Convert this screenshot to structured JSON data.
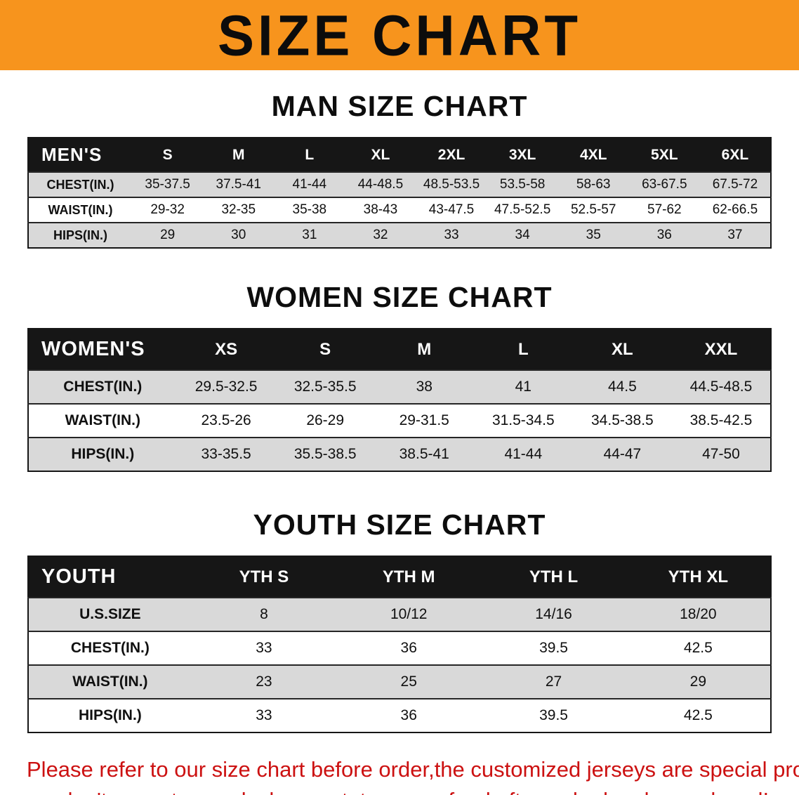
{
  "banner": {
    "title": "SIZE CHART"
  },
  "colors": {
    "banner_bg": "#F7941D",
    "header_row_bg": "#161616",
    "shaded_row_bg": "#D9D9D9",
    "footer_text": "#CC1111"
  },
  "sections": [
    {
      "heading": "MAN SIZE CHART",
      "table": {
        "header_label": "MEN'S",
        "columns": [
          "S",
          "M",
          "L",
          "XL",
          "2XL",
          "3XL",
          "4XL",
          "5XL",
          "6XL"
        ],
        "rows": [
          {
            "label": "CHEST(IN.)",
            "values": [
              "35-37.5",
              "37.5-41",
              "41-44",
              "44-48.5",
              "48.5-53.5",
              "53.5-58",
              "58-63",
              "63-67.5",
              "67.5-72"
            ]
          },
          {
            "label": "WAIST(IN.)",
            "values": [
              "29-32",
              "32-35",
              "35-38",
              "38-43",
              "43-47.5",
              "47.5-52.5",
              "52.5-57",
              "57-62",
              "62-66.5"
            ]
          },
          {
            "label": "HIPS(IN.)",
            "values": [
              "29",
              "30",
              "31",
              "32",
              "33",
              "34",
              "35",
              "36",
              "37"
            ]
          }
        ]
      }
    },
    {
      "heading": "WOMEN SIZE CHART",
      "table": {
        "header_label": "WOMEN'S",
        "columns": [
          "XS",
          "S",
          "M",
          "L",
          "XL",
          "XXL"
        ],
        "rows": [
          {
            "label": "CHEST(IN.)",
            "values": [
              "29.5-32.5",
              "32.5-35.5",
              "38",
              "41",
              "44.5",
              "44.5-48.5"
            ]
          },
          {
            "label": "WAIST(IN.)",
            "values": [
              "23.5-26",
              "26-29",
              "29-31.5",
              "31.5-34.5",
              "34.5-38.5",
              "38.5-42.5"
            ]
          },
          {
            "label": "HIPS(IN.)",
            "values": [
              "33-35.5",
              "35.5-38.5",
              "38.5-41",
              "41-44",
              "44-47",
              "47-50"
            ]
          }
        ]
      }
    },
    {
      "heading": "YOUTH SIZE CHART",
      "table": {
        "header_label": "YOUTH",
        "columns": [
          "YTH S",
          "YTH M",
          "YTH L",
          "YTH XL"
        ],
        "rows": [
          {
            "label": "U.S.SIZE",
            "values": [
              "8",
              "10/12",
              "14/16",
              "18/20"
            ]
          },
          {
            "label": "CHEST(IN.)",
            "values": [
              "33",
              "36",
              "39.5",
              "42.5"
            ]
          },
          {
            "label": "WAIST(IN.)",
            "values": [
              "23",
              "25",
              "27",
              "29"
            ]
          },
          {
            "label": "HIPS(IN.)",
            "values": [
              "33",
              "36",
              "39.5",
              "42.5"
            ]
          }
        ]
      }
    }
  ],
  "footer": {
    "line1": "Please refer to our size chart before order,the customized jerseys are special products,",
    "line2": "we don't accept cancel, change, teturn or refund after order has been placed!"
  }
}
